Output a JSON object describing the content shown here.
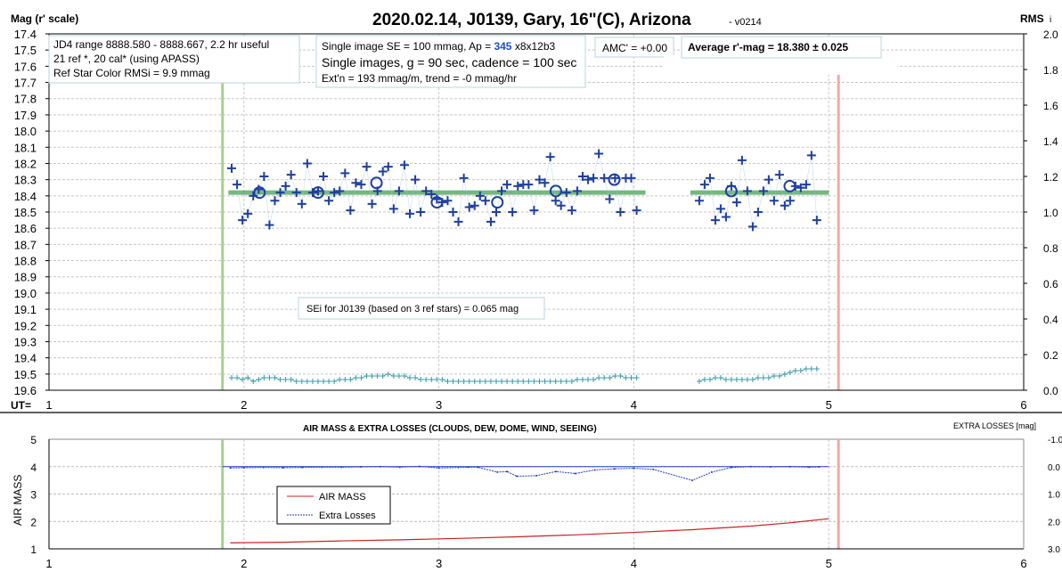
{
  "chart_data": [
    {
      "type": "scatter",
      "title": "2020.02.14, J0139, Gary, 16\"(C), Arizona",
      "version": "- v0214",
      "ylabel": "Mag (r' scale)",
      "y2label": "RMS",
      "y2label_sub": "i",
      "xlabel": "UT=",
      "xlim": [
        1,
        6
      ],
      "ylim": [
        17.4,
        19.6
      ],
      "y2lim": [
        0,
        2.0
      ],
      "xticks": [
        "1",
        "2",
        "3",
        "4",
        "5",
        "6"
      ],
      "yticks": [
        "17.4",
        "17.5",
        "17.6",
        "17.7",
        "17.8",
        "17.9",
        "18.0",
        "18.1",
        "18.2",
        "18.3",
        "18.4",
        "18.5",
        "18.6",
        "18.7",
        "18.8",
        "18.9",
        "19.0",
        "19.1",
        "19.2",
        "19.3",
        "19.4",
        "19.5",
        "19.6"
      ],
      "y2ticks": [
        "0.0",
        "0.2",
        "0.4",
        "0.6",
        "0.8",
        "1.0",
        "1.2",
        "1.4",
        "1.6",
        "1.8",
        "2.0"
      ],
      "grid": true,
      "segments": [
        {
          "ut_start": 1.937,
          "cadence_hr": 0.0277,
          "mags": [
            18.23,
            18.33,
            18.55,
            18.51,
            18.4,
            18.36,
            18.28,
            18.58,
            18.43,
            18.38,
            18.34,
            18.27,
            18.38,
            18.45,
            18.2,
            18.38,
            18.37,
            18.28,
            18.43,
            18.38,
            18.37,
            18.26,
            18.49,
            18.32,
            18.33,
            18.22,
            18.45,
            18.37,
            18.25,
            18.22,
            18.48,
            18.37,
            18.21,
            18.51,
            18.3,
            18.5,
            18.37,
            18.39,
            18.42,
            18.44,
            18.43,
            18.5,
            18.56,
            18.29,
            18.47,
            18.46,
            18.4,
            18.43,
            18.56,
            18.5,
            18.37,
            18.33,
            18.5,
            18.34,
            18.33,
            18.33,
            18.49,
            18.3,
            18.32,
            18.16,
            18.43,
            18.46,
            18.38,
            18.49,
            18.37,
            18.28,
            18.3,
            18.29,
            18.14,
            18.29,
            18.42,
            18.29,
            18.5,
            18.29,
            18.29,
            18.49
          ],
          "rms": [
            0.07,
            0.07,
            0.06,
            0.07,
            0.05,
            0.06,
            0.07,
            0.07,
            0.07,
            0.06,
            0.06,
            0.06,
            0.05,
            0.05,
            0.05,
            0.05,
            0.05,
            0.05,
            0.05,
            0.05,
            0.06,
            0.06,
            0.06,
            0.07,
            0.07,
            0.08,
            0.08,
            0.08,
            0.08,
            0.09,
            0.08,
            0.08,
            0.08,
            0.07,
            0.07,
            0.06,
            0.06,
            0.06,
            0.06,
            0.06,
            0.05,
            0.05,
            0.05,
            0.05,
            0.05,
            0.05,
            0.05,
            0.05,
            0.05,
            0.05,
            0.05,
            0.05,
            0.05,
            0.05,
            0.05,
            0.05,
            0.05,
            0.05,
            0.05,
            0.05,
            0.05,
            0.05,
            0.05,
            0.05,
            0.06,
            0.06,
            0.06,
            0.06,
            0.07,
            0.07,
            0.07,
            0.08,
            0.08,
            0.07,
            0.07,
            0.07
          ]
        },
        {
          "ut_start": 4.336,
          "cadence_hr": 0.0274,
          "mags": [
            18.43,
            18.33,
            18.29,
            18.55,
            18.48,
            18.53,
            18.34,
            18.44,
            18.18,
            18.37,
            18.59,
            18.5,
            18.37,
            18.3,
            18.43,
            18.27,
            18.46,
            18.43,
            18.34,
            18.35,
            18.33,
            18.15,
            18.55
          ],
          "rms": [
            0.05,
            0.06,
            0.06,
            0.07,
            0.07,
            0.06,
            0.06,
            0.06,
            0.06,
            0.06,
            0.06,
            0.07,
            0.07,
            0.07,
            0.08,
            0.08,
            0.09,
            0.1,
            0.11,
            0.11,
            0.12,
            0.12,
            0.12
          ]
        }
      ],
      "averages": [
        [
          2.08,
          18.38
        ],
        [
          2.38,
          18.38
        ],
        [
          2.68,
          18.32
        ],
        [
          2.99,
          18.44
        ],
        [
          3.3,
          18.44
        ],
        [
          3.6,
          18.37
        ],
        [
          3.9,
          18.3
        ],
        [
          4.5,
          18.37
        ],
        [
          4.8,
          18.34
        ]
      ],
      "fit_line": {
        "value": 18.38,
        "ranges": [
          [
            1.92,
            4.06
          ],
          [
            4.29,
            5.0
          ]
        ]
      },
      "markers": {
        "start_ut": 1.89,
        "end_ut": 5.05
      },
      "annotations": {
        "info1": [
          "JD4 range 8888.580 - 8888.667, 2.2 hr useful",
          "21 ref *, 20 cal* (using APASS)",
          "Ref Star Color RMSi = 9.9 mmag"
        ],
        "info2_line1_pre": "Single image SE = 100 mmag, Ap = ",
        "info2_ap": "345",
        "info2_line1_post": " x8x12b3",
        "info2_line2": "Single images, g = 90 sec, cadence = 100 sec",
        "info2_line3": "Ext'n = 193 mmag/m, trend = -0 mmag/hr",
        "amc": "AMC' = +0.00",
        "average": "Average r'-mag =  18.380 ± 0.025",
        "sei": "SEi for J0139 (based on 3 ref stars) = 0.065 mag"
      },
      "colors": {
        "points": "#1f3f9f",
        "fit": "#3a9a4a",
        "rms": "#3a9aa8",
        "start": "#a8d08d",
        "end": "#f4a7a7",
        "ap": "#1f4fbf"
      }
    },
    {
      "type": "line",
      "title": "AIR MASS & EXTRA LOSSES (CLOUDS, DEW, DOME, WIND, SEEING)",
      "ylabel": "AIR MASS",
      "y2label": "EXTRA LOSSES [mag]",
      "xlim": [
        1,
        6
      ],
      "ylim": [
        1,
        5
      ],
      "y2lim": [
        -1.0,
        3.0
      ],
      "xticks": [
        "1",
        "2",
        "3",
        "4",
        "5",
        "6"
      ],
      "yticks": [
        "1",
        "2",
        "3",
        "4",
        "5"
      ],
      "y2ticks": [
        "-1.0",
        "0.0",
        "1.0",
        "2.0",
        "3.0"
      ],
      "legend": [
        "AIR MASS",
        "Extra Losses"
      ],
      "series": [
        {
          "name": "AIR MASS",
          "color": "#cc2222",
          "x": [
            1.93,
            2.2,
            2.5,
            2.8,
            3.1,
            3.4,
            3.7,
            4.0,
            4.3,
            4.6,
            4.8,
            5.0
          ],
          "y": [
            1.22,
            1.24,
            1.29,
            1.33,
            1.38,
            1.44,
            1.51,
            1.6,
            1.7,
            1.83,
            1.95,
            2.1
          ]
        },
        {
          "name": "Extra Losses",
          "color": "#1f3fbf",
          "x": [
            1.93,
            2.0,
            2.1,
            2.2,
            2.3,
            2.4,
            2.5,
            2.6,
            2.7,
            2.8,
            2.9,
            3.0,
            3.1,
            3.15,
            3.2,
            3.3,
            3.35,
            3.4,
            3.5,
            3.6,
            3.7,
            3.8,
            3.9,
            4.0,
            4.1,
            4.3,
            4.4,
            4.5,
            4.6,
            4.7,
            4.8,
            4.9,
            4.95
          ],
          "y": [
            0.05,
            0.04,
            0.03,
            0.04,
            0.03,
            0.02,
            0.02,
            0.01,
            0.0,
            0.02,
            -0.01,
            0.05,
            0.03,
            0.02,
            0.02,
            0.2,
            0.18,
            0.35,
            0.33,
            0.18,
            0.25,
            0.12,
            0.08,
            0.06,
            0.1,
            0.5,
            0.2,
            0.03,
            0.0,
            0.01,
            0.0,
            0.02,
            0.01
          ]
        }
      ]
    }
  ]
}
